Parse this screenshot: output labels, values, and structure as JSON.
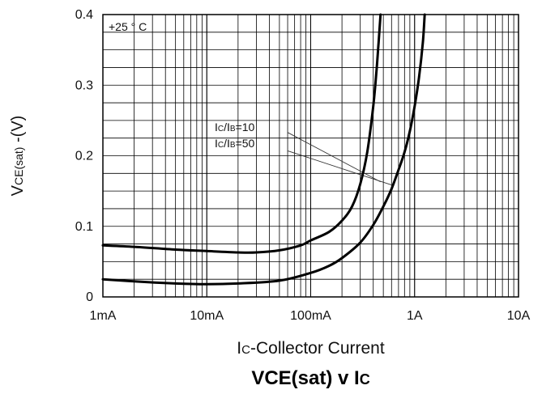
{
  "chart_data": {
    "type": "line",
    "title": {
      "main": "VCE(sat) v IC",
      "part1": "VCE(sat) v I",
      "part2": "C"
    },
    "xlabel": {
      "main": "I",
      "sub": "C",
      "rest": "-Collector Current"
    },
    "ylabel": {
      "a": "V",
      "b": "CE(sat)",
      "c": " -(V)"
    },
    "x_scale": "log",
    "xlim": [
      0.001,
      10
    ],
    "ylim": [
      0,
      0.4
    ],
    "xticks": [
      {
        "value": 0.001,
        "label": "1mA"
      },
      {
        "value": 0.01,
        "label": "10mA"
      },
      {
        "value": 0.1,
        "label": "100mA"
      },
      {
        "value": 1,
        "label": "1A"
      },
      {
        "value": 10,
        "label": "10A"
      }
    ],
    "yticks": [
      {
        "value": 0,
        "label": "0"
      },
      {
        "value": 0.1,
        "label": "0.1"
      },
      {
        "value": 0.2,
        "label": "0.2"
      },
      {
        "value": 0.3,
        "label": "0.3"
      },
      {
        "value": 0.4,
        "label": "0.4"
      }
    ],
    "grid": true,
    "condition_label": "+25 ° C",
    "annotations": [
      {
        "label_main": "I",
        "label_sub1": "C",
        "label_mid": "/I",
        "label_sub2": "B",
        "label_val": "=10"
      },
      {
        "label_main": "I",
        "label_sub1": "C",
        "label_mid": "/I",
        "label_sub2": "B",
        "label_val": "=50"
      }
    ],
    "series": [
      {
        "x": [
          0.001,
          0.002,
          0.005,
          0.01,
          0.02,
          0.03,
          0.05,
          0.08,
          0.1,
          0.15,
          0.2,
          0.25,
          0.3,
          0.35,
          0.4,
          0.43,
          0.45,
          0.47
        ],
        "y": [
          0.073,
          0.071,
          0.067,
          0.065,
          0.063,
          0.063,
          0.066,
          0.073,
          0.08,
          0.092,
          0.108,
          0.128,
          0.16,
          0.205,
          0.27,
          0.32,
          0.36,
          0.4
        ]
      },
      {
        "x": [
          0.001,
          0.002,
          0.005,
          0.01,
          0.02,
          0.05,
          0.1,
          0.15,
          0.2,
          0.3,
          0.4,
          0.5,
          0.6,
          0.7,
          0.8,
          0.9,
          1.0,
          1.1,
          1.2,
          1.25
        ],
        "y": [
          0.025,
          0.022,
          0.019,
          0.018,
          0.019,
          0.023,
          0.034,
          0.044,
          0.055,
          0.077,
          0.102,
          0.128,
          0.153,
          0.18,
          0.205,
          0.235,
          0.27,
          0.31,
          0.36,
          0.4
        ]
      }
    ]
  }
}
